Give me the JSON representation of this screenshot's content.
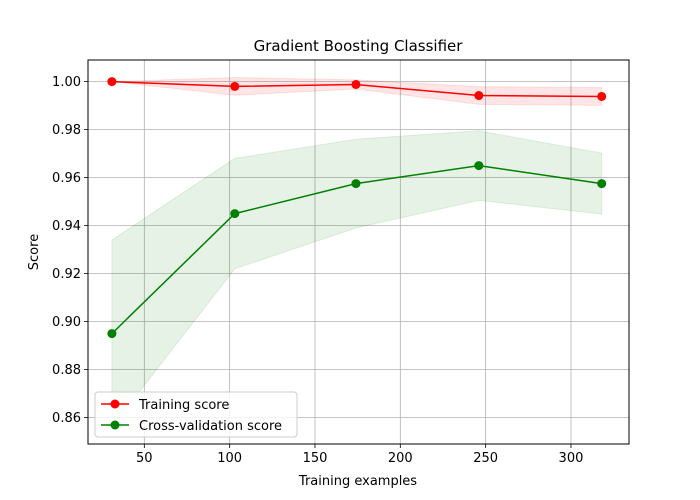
{
  "chart_data": {
    "type": "line",
    "title": "Gradient Boosting Classifier",
    "xlabel": "Training examples",
    "ylabel": "Score",
    "xlim": [
      17,
      334
    ],
    "ylim": [
      0.849,
      1.009
    ],
    "xticks": [
      50,
      100,
      150,
      200,
      250,
      300
    ],
    "xtick_labels": [
      "50",
      "100",
      "150",
      "200",
      "250",
      "300"
    ],
    "yticks": [
      0.86,
      0.88,
      0.9,
      0.92,
      0.94,
      0.96,
      0.98,
      1.0
    ],
    "ytick_labels": [
      "0.86",
      "0.88",
      "0.90",
      "0.92",
      "0.94",
      "0.96",
      "0.98",
      "1.00"
    ],
    "grid": true,
    "legend_position": "lower-left",
    "x": [
      31,
      103,
      174,
      246,
      318
    ],
    "series": [
      {
        "name": "Training score",
        "color": "#ff0000",
        "band_color": "#ff0000",
        "values": [
          1.0,
          0.998,
          0.9988,
          0.9942,
          0.9938
        ],
        "band_upper": [
          1.0,
          1.0017,
          1.0007,
          0.9979,
          0.9975
        ],
        "band_lower": [
          1.0,
          0.9943,
          0.9969,
          0.9905,
          0.9901
        ]
      },
      {
        "name": "Cross-validation score",
        "color": "#008000",
        "band_color": "#008000",
        "values": [
          0.895,
          0.945,
          0.9575,
          0.965,
          0.9575
        ],
        "band_upper": [
          0.934,
          0.968,
          0.976,
          0.9795,
          0.9702
        ],
        "band_lower": [
          0.856,
          0.922,
          0.939,
          0.9505,
          0.9448
        ]
      }
    ]
  }
}
